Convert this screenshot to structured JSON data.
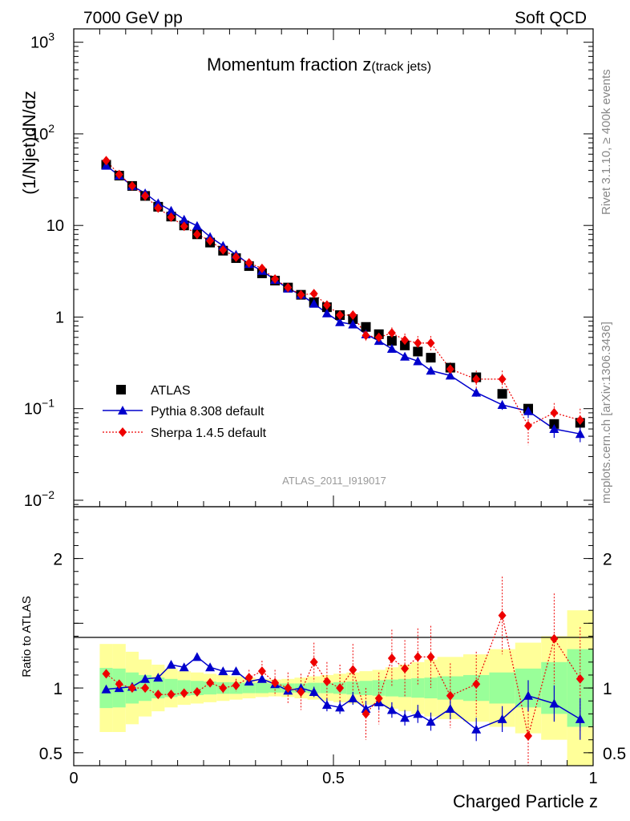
{
  "header": {
    "left": "7000 GeV pp",
    "right": "Soft QCD"
  },
  "side": {
    "rivet": "Rivet 3.1.10, ≥ 400k events",
    "mcplots": "mcplots.cern.ch [arXiv:1306.3436]"
  },
  "analysis_id": "ATLAS_2011_I919017",
  "colors": {
    "atlas": "#000000",
    "pythia": "#0000cc",
    "sherpa": "#ee0000",
    "band_inner": "#99ff99",
    "band_outer": "#ffff99"
  },
  "chart_data": [
    {
      "type": "scatter",
      "title_main": "Momentum fraction z",
      "title_sub": "(track jets)",
      "ylabel": "(1/Njet)dN/dz",
      "yscale": "log",
      "xlim": [
        0,
        1
      ],
      "ylim": [
        0.0085,
        1400
      ],
      "y_ticks": [
        {
          "value": 0.01,
          "base": "10",
          "exp": "−2"
        },
        {
          "value": 0.1,
          "base": "10",
          "exp": "−1"
        },
        {
          "value": 1,
          "base": "1",
          "exp": ""
        },
        {
          "value": 10,
          "base": "10",
          "exp": ""
        },
        {
          "value": 100,
          "base": "10",
          "exp": "2"
        },
        {
          "value": 1000,
          "base": "10",
          "exp": "3"
        }
      ],
      "x": [
        0.0625,
        0.0875,
        0.1125,
        0.1375,
        0.1625,
        0.1875,
        0.2125,
        0.2375,
        0.2625,
        0.2875,
        0.3125,
        0.3375,
        0.3625,
        0.3875,
        0.4125,
        0.4375,
        0.4625,
        0.4875,
        0.5125,
        0.5375,
        0.5625,
        0.5875,
        0.6125,
        0.6375,
        0.6625,
        0.6875,
        0.725,
        0.775,
        0.825,
        0.875,
        0.925,
        0.975
      ],
      "series": [
        {
          "name": "ATLAS",
          "marker": "square",
          "values": [
            46,
            35,
            27,
            21,
            16,
            12.5,
            10,
            8,
            6.5,
            5.3,
            4.4,
            3.6,
            3.0,
            2.5,
            2.1,
            1.75,
            1.45,
            1.28,
            1.05,
            0.95,
            0.78,
            0.65,
            0.55,
            0.49,
            0.42,
            0.36,
            0.28,
            0.22,
            0.145,
            0.1,
            0.068,
            0.07
          ]
        },
        {
          "name": "Pythia 8.308 default",
          "marker": "triangle",
          "line": "solid",
          "values": [
            45,
            35,
            27,
            22.5,
            17.5,
            14.5,
            11.6,
            9.9,
            7.5,
            6.0,
            4.8,
            3.8,
            3.2,
            2.55,
            2.05,
            1.75,
            1.4,
            1.1,
            0.88,
            0.83,
            0.65,
            0.55,
            0.45,
            0.37,
            0.33,
            0.26,
            0.23,
            0.15,
            0.11,
            0.094,
            0.06,
            0.053
          ],
          "yerr": [
            0,
            0,
            0,
            0,
            0,
            0,
            0,
            0,
            0,
            0,
            0,
            0,
            0,
            0,
            0,
            0,
            0,
            0.06,
            0.05,
            0.05,
            0.05,
            0.04,
            0.035,
            0.03,
            0.03,
            0.025,
            0.02,
            0.015,
            0.013,
            0.015,
            0.012,
            0.01
          ]
        },
        {
          "name": "Sherpa 1.4.5 default",
          "marker": "diamond",
          "line": "dotted",
          "values": [
            51,
            36,
            27,
            21,
            15.5,
            12.3,
            9.8,
            8.0,
            6.8,
            5.4,
            4.5,
            3.9,
            3.4,
            2.6,
            2.1,
            1.75,
            1.8,
            1.35,
            1.05,
            1.05,
            0.63,
            0.6,
            0.67,
            0.56,
            0.52,
            0.52,
            0.27,
            0.21,
            0.21,
            0.065,
            0.09,
            0.075
          ],
          "yerr": [
            0,
            0,
            0,
            0,
            0,
            0,
            0,
            0,
            0,
            0,
            0,
            0.1,
            0.1,
            0.1,
            0.1,
            0.1,
            0.12,
            0.1,
            0.1,
            0.1,
            0.08,
            0.08,
            0.1,
            0.1,
            0.1,
            0.1,
            0.05,
            0.05,
            0.05,
            0.025,
            0.025,
            0.025
          ]
        }
      ]
    },
    {
      "type": "scatter",
      "xlabel": "Charged Particle z",
      "ylabel": "Ratio to ATLAS",
      "ylim": [
        0.4,
        2.4
      ],
      "ylabel_ticks": [
        0.5,
        1,
        2
      ],
      "x_ticks": [
        {
          "value": 0,
          "label": "0"
        },
        {
          "value": 0.5,
          "label": "0.5"
        },
        {
          "value": 1,
          "label": "1"
        }
      ],
      "band_edges": [
        0.05,
        0.075,
        0.1,
        0.125,
        0.15,
        0.175,
        0.2,
        0.225,
        0.25,
        0.275,
        0.3,
        0.325,
        0.35,
        0.375,
        0.4,
        0.425,
        0.45,
        0.475,
        0.5,
        0.525,
        0.55,
        0.575,
        0.6,
        0.625,
        0.65,
        0.675,
        0.7,
        0.75,
        0.8,
        0.85,
        0.9,
        0.95,
        1.0
      ],
      "band_inner": [
        0.155,
        0.15,
        0.12,
        0.1,
        0.08,
        0.07,
        0.06,
        0.055,
        0.05,
        0.045,
        0.045,
        0.04,
        0.04,
        0.035,
        0.035,
        0.035,
        0.04,
        0.04,
        0.045,
        0.05,
        0.055,
        0.06,
        0.065,
        0.07,
        0.075,
        0.08,
        0.09,
        0.1,
        0.12,
        0.15,
        0.2,
        0.3
      ],
      "band_outer": [
        0.34,
        0.34,
        0.28,
        0.22,
        0.18,
        0.15,
        0.13,
        0.12,
        0.11,
        0.1,
        0.09,
        0.08,
        0.07,
        0.065,
        0.07,
        0.08,
        0.09,
        0.1,
        0.11,
        0.12,
        0.13,
        0.14,
        0.16,
        0.18,
        0.2,
        0.22,
        0.24,
        0.26,
        0.3,
        0.35,
        0.4,
        0.6
      ],
      "series": [
        {
          "name": "Pythia 8.308 default",
          "marker": "triangle",
          "line": "solid",
          "values": [
            0.99,
            1.0,
            1.01,
            1.07,
            1.08,
            1.18,
            1.16,
            1.24,
            1.16,
            1.13,
            1.13,
            1.05,
            1.07,
            1.03,
            0.98,
            1.0,
            0.97,
            0.87,
            0.85,
            0.92,
            0.84,
            0.89,
            0.83,
            0.77,
            0.8,
            0.74,
            0.84,
            0.68,
            0.76,
            0.94,
            0.88,
            0.76
          ],
          "yerr": [
            0,
            0,
            0,
            0,
            0,
            0,
            0,
            0,
            0,
            0,
            0,
            0,
            0.02,
            0.02,
            0.03,
            0.03,
            0.04,
            0.05,
            0.05,
            0.05,
            0.06,
            0.06,
            0.06,
            0.06,
            0.07,
            0.07,
            0.08,
            0.09,
            0.1,
            0.12,
            0.14,
            0.16
          ]
        },
        {
          "name": "Sherpa 1.4.5 default",
          "marker": "diamond",
          "line": "dotted",
          "values": [
            1.11,
            1.03,
            1.0,
            1.0,
            0.95,
            0.95,
            0.96,
            0.97,
            1.04,
            1.0,
            1.02,
            1.08,
            1.13,
            1.04,
            1.0,
            0.97,
            1.2,
            1.05,
            1.0,
            1.14,
            0.8,
            0.92,
            1.23,
            1.15,
            1.24,
            1.24,
            0.94,
            1.03,
            1.56,
            0.63,
            1.38,
            1.07
          ],
          "yerr": [
            0,
            0,
            0,
            0,
            0,
            0,
            0,
            0,
            0.03,
            0.04,
            0.05,
            0.06,
            0.08,
            0.1,
            0.12,
            0.14,
            0.15,
            0.15,
            0.18,
            0.2,
            0.2,
            0.2,
            0.22,
            0.22,
            0.22,
            0.24,
            0.25,
            0.25,
            0.3,
            0.32,
            0.35,
            0.4
          ]
        }
      ]
    }
  ]
}
